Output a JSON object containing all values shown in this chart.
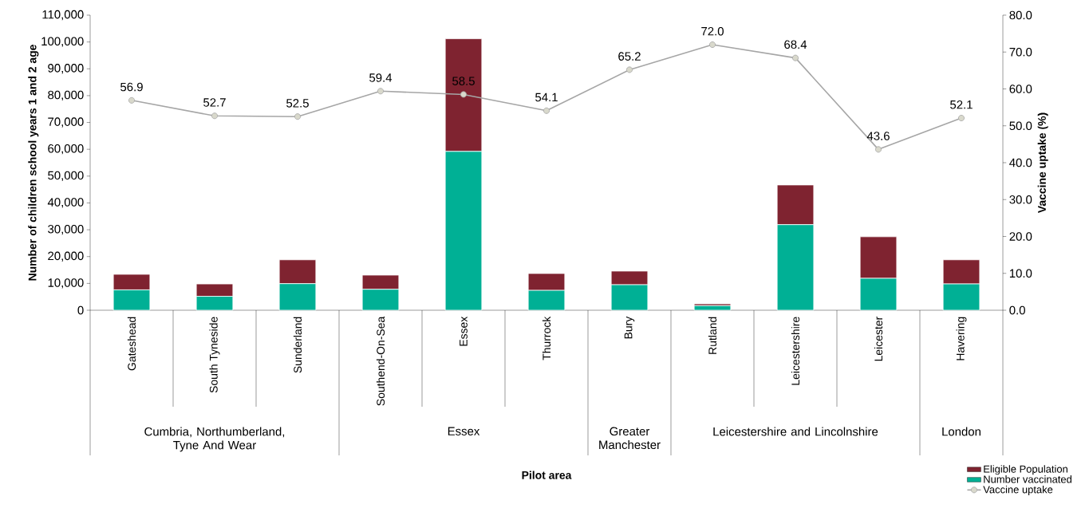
{
  "chart_data": {
    "type": "bar",
    "stacked": true,
    "categories": [
      "Gateshead",
      "South Tyneside",
      "Sunderland",
      "Southend-On-Sea",
      "Essex",
      "Thurrock",
      "Bury",
      "Rutland",
      "Leicestershire",
      "Leicester",
      "Havering"
    ],
    "series": [
      {
        "name": "Number vaccinated",
        "color": "#00b095",
        "values": [
          7600,
          5200,
          9900,
          7800,
          59200,
          7400,
          9500,
          1700,
          31900,
          11900,
          9800
        ]
      },
      {
        "name": "Eligible Population",
        "color": "#7f2330",
        "values": [
          5800,
          4600,
          8900,
          5300,
          42000,
          6300,
          5100,
          700,
          14800,
          15500,
          9000
        ]
      },
      {
        "name": "Vaccine uptake",
        "type": "line",
        "axis": "y2",
        "color": "#a6a6a6",
        "marker": "circle",
        "line_style": "solid",
        "values": [
          56.9,
          52.7,
          52.5,
          59.4,
          58.5,
          54.1,
          65.2,
          72.0,
          68.4,
          43.6,
          52.1
        ],
        "value_labels": [
          "56.9",
          "52.7",
          "52.5",
          "59.4",
          "58.5",
          "54.1",
          "65.2",
          "72.0",
          "68.4",
          "43.6",
          "52.1"
        ]
      }
    ],
    "ylabel": "Number of children school years 1 and 2 age",
    "y2label": "Vaccine uptake (%)",
    "ylim": [
      0,
      110000
    ],
    "yticks": [
      {
        "value": 0,
        "label": "0"
      },
      {
        "value": 10000,
        "label": "10,000"
      },
      {
        "value": 20000,
        "label": "20,000"
      },
      {
        "value": 30000,
        "label": "30,000"
      },
      {
        "value": 40000,
        "label": "40,000"
      },
      {
        "value": 50000,
        "label": "50,000"
      },
      {
        "value": 60000,
        "label": "60,000"
      },
      {
        "value": 70000,
        "label": "70,000"
      },
      {
        "value": 80000,
        "label": "80,000"
      },
      {
        "value": 90000,
        "label": "90,000"
      },
      {
        "value": 100000,
        "label": "100,000"
      },
      {
        "value": 110000,
        "label": "110,000"
      }
    ],
    "y2lim": [
      0,
      80
    ],
    "y2ticks": [
      {
        "value": 0,
        "label": "0.0"
      },
      {
        "value": 10,
        "label": "10.0"
      },
      {
        "value": 20,
        "label": "20.0"
      },
      {
        "value": 30,
        "label": "30.0"
      },
      {
        "value": 40,
        "label": "40.0"
      },
      {
        "value": 50,
        "label": "50.0"
      },
      {
        "value": 60,
        "label": "60.0"
      },
      {
        "value": 70,
        "label": "70.0"
      },
      {
        "value": 80,
        "label": "80.0"
      }
    ],
    "annotations": [
      "Cumbria, Northumberland, Tyne And Wear",
      "Essex",
      "Greater Manchester",
      "Leicestershire and Lincolnshire",
      "London",
      "Pilot area"
    ],
    "legend": "bottom right"
  }
}
